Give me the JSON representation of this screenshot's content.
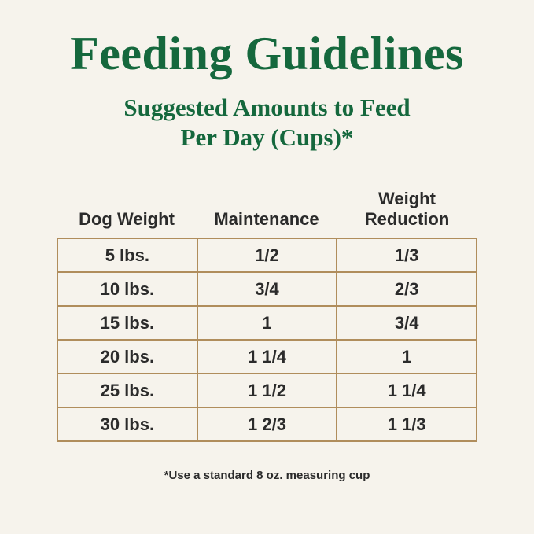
{
  "page": {
    "title": "Feeding Guidelines",
    "subtitle_line1": "Suggested Amounts to Feed",
    "subtitle_line2": "Per Day (Cups)*",
    "footnote": "*Use a standard 8 oz. measuring cup"
  },
  "colors": {
    "background": "#f6f3ec",
    "title_green": "#15683d",
    "table_border": "#b08d5c",
    "text": "#2b2b2b"
  },
  "table": {
    "headers": [
      "Dog Weight",
      "Maintenance",
      "Weight Reduction"
    ],
    "rows": [
      [
        "5 lbs.",
        "1/2",
        "1/3"
      ],
      [
        "10 lbs.",
        "3/4",
        "2/3"
      ],
      [
        "15 lbs.",
        "1",
        "3/4"
      ],
      [
        "20 lbs.",
        "1 1/4",
        "1"
      ],
      [
        "25 lbs.",
        "1 1/2",
        "1 1/4"
      ],
      [
        "30 lbs.",
        "1 2/3",
        "1 1/3"
      ]
    ]
  }
}
